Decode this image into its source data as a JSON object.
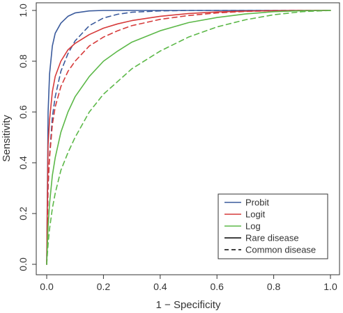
{
  "chart_data": {
    "type": "line",
    "title": "",
    "xlabel": "1 − Specificity",
    "ylabel": "Sensitivity",
    "xlim": [
      0,
      1
    ],
    "ylim": [
      0,
      1
    ],
    "x_ticks": [
      "0.0",
      "0.2",
      "0.4",
      "0.6",
      "0.8",
      "1.0"
    ],
    "y_ticks": [
      "0.0",
      "0.2",
      "0.4",
      "0.6",
      "0.8",
      "1.0"
    ],
    "grid": false,
    "legend_position": "bottom-right",
    "legend": [
      {
        "label": "Probit",
        "color": "#3a5a9c",
        "style": "solid"
      },
      {
        "label": "Logit",
        "color": "#d63a3a",
        "style": "solid"
      },
      {
        "label": "Log",
        "color": "#5cb848",
        "style": "solid"
      },
      {
        "label": "Rare disease",
        "color": "#000000",
        "style": "solid"
      },
      {
        "label": "Common disease",
        "color": "#000000",
        "style": "dashed"
      }
    ],
    "x": [
      0,
      0.005,
      0.01,
      0.02,
      0.03,
      0.05,
      0.075,
      0.1,
      0.15,
      0.2,
      0.25,
      0.3,
      0.4,
      0.5,
      0.6,
      0.7,
      0.8,
      0.9,
      1.0
    ],
    "series": [
      {
        "model": "Probit",
        "disease": "Rare",
        "color": "#3a5a9c",
        "dash": false,
        "values": [
          0,
          0.6,
          0.75,
          0.86,
          0.91,
          0.95,
          0.977,
          0.99,
          0.998,
          1.0,
          1.0,
          1.0,
          1.0,
          1.0,
          1.0,
          1.0,
          1.0,
          1.0,
          1.0
        ]
      },
      {
        "model": "Probit",
        "disease": "Common",
        "color": "#3a5a9c",
        "dash": true,
        "values": [
          0,
          0.3,
          0.43,
          0.58,
          0.66,
          0.76,
          0.83,
          0.88,
          0.94,
          0.97,
          0.985,
          0.993,
          0.998,
          1.0,
          1.0,
          1.0,
          1.0,
          1.0,
          1.0
        ]
      },
      {
        "model": "Logit",
        "disease": "Rare",
        "color": "#d63a3a",
        "dash": false,
        "values": [
          0,
          0.47,
          0.57,
          0.68,
          0.74,
          0.8,
          0.845,
          0.87,
          0.905,
          0.93,
          0.947,
          0.96,
          0.977,
          0.988,
          0.994,
          0.997,
          0.999,
          1.0,
          1.0
        ]
      },
      {
        "model": "Logit",
        "disease": "Common",
        "color": "#d63a3a",
        "dash": true,
        "values": [
          0,
          0.32,
          0.42,
          0.55,
          0.62,
          0.7,
          0.76,
          0.8,
          0.86,
          0.895,
          0.92,
          0.94,
          0.965,
          0.98,
          0.99,
          0.996,
          0.999,
          1.0,
          1.0
        ]
      },
      {
        "model": "Log",
        "disease": "Rare",
        "color": "#5cb848",
        "dash": false,
        "values": [
          0,
          0.15,
          0.24,
          0.35,
          0.42,
          0.52,
          0.6,
          0.66,
          0.74,
          0.8,
          0.84,
          0.875,
          0.92,
          0.952,
          0.972,
          0.986,
          0.995,
          0.999,
          1.0
        ]
      },
      {
        "model": "Log",
        "disease": "Common",
        "color": "#5cb848",
        "dash": true,
        "values": [
          0,
          0.08,
          0.14,
          0.22,
          0.28,
          0.37,
          0.44,
          0.5,
          0.6,
          0.67,
          0.72,
          0.77,
          0.84,
          0.895,
          0.935,
          0.963,
          0.983,
          0.995,
          1.0
        ]
      }
    ]
  }
}
